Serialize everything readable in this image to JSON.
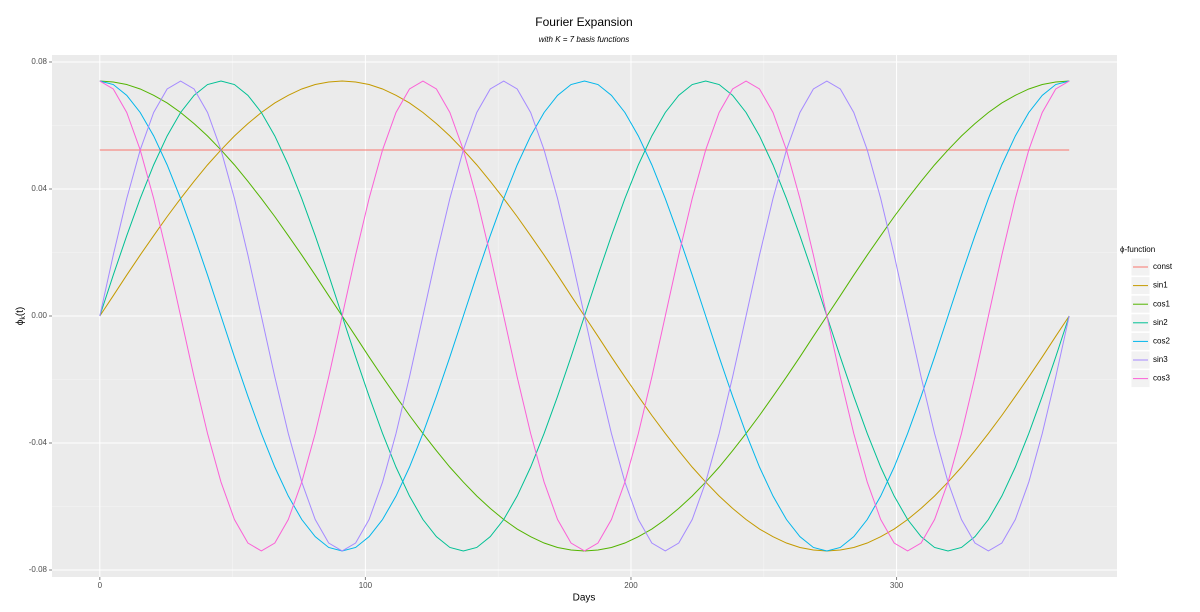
{
  "chart_data": {
    "type": "line",
    "title": "Fourier Expansion",
    "subtitle": "with K =  7  basis functions",
    "x_label": "Days",
    "y_label": [
      "ϕ",
      "k",
      "(t)"
    ],
    "legend_title": "ϕ-function",
    "legend": "right",
    "grid": true,
    "xlim": [
      -18,
      383
    ],
    "xticks": [
      0,
      100,
      200,
      300
    ],
    "x_minor_ticks": [
      50,
      150,
      250,
      350
    ],
    "ylim": [
      -0.0822,
      0.0822
    ],
    "yticks": [
      0.08,
      0.04,
      {
        "value": 0,
        "label": "0.00"
      },
      -0.04,
      -0.08
    ],
    "y_minor_ticks": [
      0.06,
      0.02,
      -0.02,
      -0.06
    ],
    "x": [
      0,
      5.07,
      10.14,
      15.21,
      20.28,
      25.35,
      30.42,
      35.49,
      40.56,
      45.63,
      50.69,
      55.76,
      60.83,
      65.9,
      70.97,
      76.04,
      81.11,
      86.18,
      91.25,
      96.32,
      101.39,
      106.46,
      111.53,
      116.6,
      121.67,
      126.74,
      131.81,
      136.88,
      141.94,
      147.01,
      152.08,
      157.15,
      162.22,
      167.29,
      172.36,
      177.43,
      182.5,
      187.57,
      192.64,
      197.71,
      202.78,
      207.85,
      212.92,
      217.99,
      223.06,
      228.13,
      233.19,
      238.26,
      243.33,
      248.4,
      253.47,
      258.54,
      263.61,
      268.68,
      273.75,
      278.82,
      283.89,
      288.96,
      294.03,
      299.1,
      304.17,
      309.24,
      314.31,
      319.38,
      324.44,
      329.51,
      334.58,
      339.65,
      344.72,
      349.79,
      354.86,
      359.93,
      365
    ],
    "series": [
      {
        "name": "const",
        "color": "#F8766D",
        "values": [
          0.0523,
          0.0523,
          0.0523,
          0.0523,
          0.0523,
          0.0523,
          0.0523,
          0.0523,
          0.0523,
          0.0523,
          0.0523,
          0.0523,
          0.0523,
          0.0523,
          0.0523,
          0.0523,
          0.0523,
          0.0523,
          0.0523,
          0.0523,
          0.0523,
          0.0523,
          0.0523,
          0.0523,
          0.0523,
          0.0523,
          0.0523,
          0.0523,
          0.0523,
          0.0523,
          0.0523,
          0.0523,
          0.0523,
          0.0523,
          0.0523,
          0.0523,
          0.0523,
          0.0523,
          0.0523,
          0.0523,
          0.0523,
          0.0523,
          0.0523,
          0.0523,
          0.0523,
          0.0523,
          0.0523,
          0.0523,
          0.0523,
          0.0523,
          0.0523,
          0.0523,
          0.0523,
          0.0523,
          0.0523,
          0.0523,
          0.0523,
          0.0523,
          0.0523,
          0.0523,
          0.0523,
          0.0523,
          0.0523,
          0.0523,
          0.0523,
          0.0523,
          0.0523,
          0.0523,
          0.0523,
          0.0523,
          0.0523,
          0.0523,
          0.0523
        ]
      },
      {
        "name": "sin1",
        "color": "#C49A00",
        "values": [
          0,
          0.0064,
          0.0129,
          0.0192,
          0.0253,
          0.0313,
          0.037,
          0.0424,
          0.0476,
          0.0523,
          0.0567,
          0.0606,
          0.0641,
          0.0671,
          0.0695,
          0.0715,
          0.0729,
          0.0737,
          0.074,
          0.0737,
          0.0729,
          0.0715,
          0.0695,
          0.0671,
          0.0641,
          0.0606,
          0.0567,
          0.0523,
          0.0476,
          0.0424,
          0.037,
          0.0313,
          0.0253,
          0.0192,
          0.0129,
          0.0064,
          0,
          -0.0064,
          -0.0129,
          -0.0192,
          -0.0253,
          -0.0313,
          -0.037,
          -0.0424,
          -0.0476,
          -0.0523,
          -0.0567,
          -0.0606,
          -0.0641,
          -0.0671,
          -0.0695,
          -0.0715,
          -0.0729,
          -0.0737,
          -0.074,
          -0.0737,
          -0.0729,
          -0.0715,
          -0.0695,
          -0.0671,
          -0.0641,
          -0.0606,
          -0.0567,
          -0.0523,
          -0.0476,
          -0.0424,
          -0.037,
          -0.0313,
          -0.0253,
          -0.0192,
          -0.0129,
          -0.0064,
          0
        ]
      },
      {
        "name": "cos1",
        "color": "#53B400",
        "values": [
          0.074,
          0.0737,
          0.0729,
          0.0715,
          0.0695,
          0.0671,
          0.0641,
          0.0606,
          0.0567,
          0.0523,
          0.0476,
          0.0424,
          0.037,
          0.0313,
          0.0253,
          0.0192,
          0.0129,
          0.0064,
          0,
          -0.0064,
          -0.0129,
          -0.0192,
          -0.0253,
          -0.0313,
          -0.037,
          -0.0424,
          -0.0476,
          -0.0523,
          -0.0567,
          -0.0606,
          -0.0641,
          -0.0671,
          -0.0695,
          -0.0715,
          -0.0729,
          -0.0737,
          -0.074,
          -0.0737,
          -0.0729,
          -0.0715,
          -0.0695,
          -0.0671,
          -0.0641,
          -0.0606,
          -0.0567,
          -0.0523,
          -0.0476,
          -0.0424,
          -0.037,
          -0.0313,
          -0.0253,
          -0.0192,
          -0.0129,
          -0.0064,
          0,
          0.0064,
          0.0129,
          0.0192,
          0.0253,
          0.0313,
          0.037,
          0.0424,
          0.0476,
          0.0523,
          0.0567,
          0.0606,
          0.0641,
          0.0671,
          0.0695,
          0.0715,
          0.0729,
          0.0737,
          0.074
        ]
      },
      {
        "name": "sin2",
        "color": "#00C094",
        "values": [
          0,
          0.0129,
          0.0253,
          0.037,
          0.0476,
          0.0567,
          0.0641,
          0.0695,
          0.0729,
          0.074,
          0.0729,
          0.0695,
          0.0641,
          0.0567,
          0.0476,
          0.037,
          0.0253,
          0.0129,
          0,
          -0.0129,
          -0.0253,
          -0.037,
          -0.0476,
          -0.0567,
          -0.0641,
          -0.0695,
          -0.0729,
          -0.074,
          -0.0729,
          -0.0695,
          -0.0641,
          -0.0567,
          -0.0476,
          -0.037,
          -0.0253,
          -0.0129,
          0,
          0.0129,
          0.0253,
          0.037,
          0.0476,
          0.0567,
          0.0641,
          0.0695,
          0.0729,
          0.074,
          0.0729,
          0.0695,
          0.0641,
          0.0567,
          0.0476,
          0.037,
          0.0253,
          0.0129,
          0,
          -0.0129,
          -0.0253,
          -0.037,
          -0.0476,
          -0.0567,
          -0.0641,
          -0.0695,
          -0.0729,
          -0.074,
          -0.0729,
          -0.0695,
          -0.0641,
          -0.0567,
          -0.0476,
          -0.037,
          -0.0253,
          -0.0129,
          0
        ]
      },
      {
        "name": "cos2",
        "color": "#00B6EB",
        "values": [
          0.074,
          0.0729,
          0.0695,
          0.0641,
          0.0567,
          0.0476,
          0.037,
          0.0253,
          0.0129,
          0,
          -0.0129,
          -0.0253,
          -0.037,
          -0.0476,
          -0.0567,
          -0.0641,
          -0.0695,
          -0.0729,
          -0.074,
          -0.0729,
          -0.0695,
          -0.0641,
          -0.0567,
          -0.0476,
          -0.037,
          -0.0253,
          -0.0129,
          0,
          0.0129,
          0.0253,
          0.037,
          0.0476,
          0.0567,
          0.0641,
          0.0695,
          0.0729,
          0.074,
          0.0729,
          0.0695,
          0.0641,
          0.0567,
          0.0476,
          0.037,
          0.0253,
          0.0129,
          0,
          -0.0129,
          -0.0253,
          -0.037,
          -0.0476,
          -0.0567,
          -0.0641,
          -0.0695,
          -0.0729,
          -0.074,
          -0.0729,
          -0.0695,
          -0.0641,
          -0.0567,
          -0.0476,
          -0.037,
          -0.0253,
          -0.0129,
          0,
          0.0129,
          0.0253,
          0.037,
          0.0476,
          0.0567,
          0.0641,
          0.0695,
          0.0729,
          0.074
        ]
      },
      {
        "name": "sin3",
        "color": "#A58AFF",
        "values": [
          0,
          0.0192,
          0.037,
          0.0523,
          0.0641,
          0.0715,
          0.074,
          0.0715,
          0.0641,
          0.0523,
          0.037,
          0.0192,
          0,
          -0.0192,
          -0.037,
          -0.0523,
          -0.0641,
          -0.0715,
          -0.074,
          -0.0715,
          -0.0641,
          -0.0523,
          -0.037,
          -0.0192,
          0,
          0.0192,
          0.037,
          0.0523,
          0.0641,
          0.0715,
          0.074,
          0.0715,
          0.0641,
          0.0523,
          0.037,
          0.0192,
          0,
          -0.0192,
          -0.037,
          -0.0523,
          -0.0641,
          -0.0715,
          -0.074,
          -0.0715,
          -0.0641,
          -0.0523,
          -0.037,
          -0.0192,
          0,
          0.0192,
          0.037,
          0.0523,
          0.0641,
          0.0715,
          0.074,
          0.0715,
          0.0641,
          0.0523,
          0.037,
          0.0192,
          0,
          -0.0192,
          -0.037,
          -0.0523,
          -0.0641,
          -0.0715,
          -0.074,
          -0.0715,
          -0.0641,
          -0.0523,
          -0.037,
          -0.0192,
          0
        ]
      },
      {
        "name": "cos3",
        "color": "#FB61D7",
        "values": [
          0.074,
          0.0715,
          0.0641,
          0.0523,
          0.037,
          0.0192,
          0,
          -0.0192,
          -0.037,
          -0.0523,
          -0.0641,
          -0.0715,
          -0.074,
          -0.0715,
          -0.0641,
          -0.0523,
          -0.037,
          -0.0192,
          0,
          0.0192,
          0.037,
          0.0523,
          0.0641,
          0.0715,
          0.074,
          0.0715,
          0.0641,
          0.0523,
          0.037,
          0.0192,
          0,
          -0.0192,
          -0.037,
          -0.0523,
          -0.0641,
          -0.0715,
          -0.074,
          -0.0715,
          -0.0641,
          -0.0523,
          -0.037,
          -0.0192,
          0,
          0.0192,
          0.037,
          0.0523,
          0.0641,
          0.0715,
          0.074,
          0.0715,
          0.0641,
          0.0523,
          0.037,
          0.0192,
          0,
          -0.0192,
          -0.037,
          -0.0523,
          -0.0641,
          -0.0715,
          -0.074,
          -0.0715,
          -0.0641,
          -0.0523,
          -0.037,
          -0.0192,
          0,
          0.0192,
          0.037,
          0.0523,
          0.0641,
          0.0715,
          0.074
        ]
      }
    ]
  }
}
